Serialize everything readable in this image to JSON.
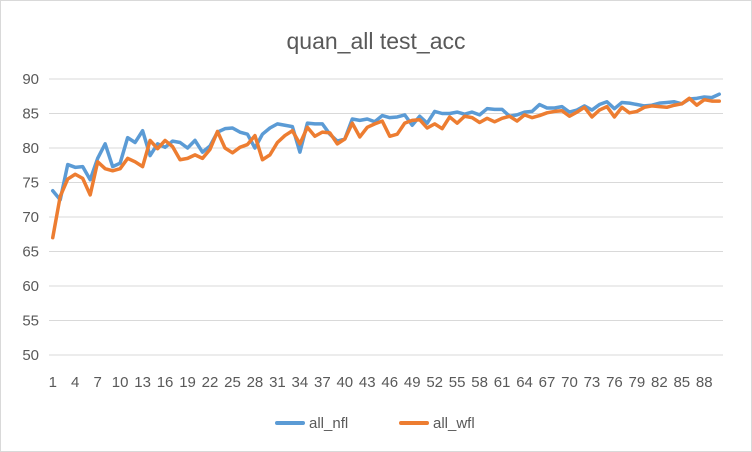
{
  "chart_data": {
    "type": "line",
    "title": "quan_all test_acc",
    "xlabel": "",
    "ylabel": "",
    "ylim": [
      50,
      90
    ],
    "yticks": [
      50,
      55,
      60,
      65,
      70,
      75,
      80,
      85,
      90
    ],
    "xtick_labels": [
      "1",
      "4",
      "7",
      "10",
      "13",
      "16",
      "19",
      "22",
      "25",
      "28",
      "31",
      "34",
      "37",
      "40",
      "43",
      "46",
      "49",
      "52",
      "55",
      "58",
      "61",
      "64",
      "67",
      "70",
      "73",
      "76",
      "79",
      "82",
      "85",
      "88"
    ],
    "xtick_every": 3,
    "grid": "horizontal",
    "legend": "bottom",
    "x": [
      1,
      2,
      3,
      4,
      5,
      6,
      7,
      8,
      9,
      10,
      11,
      12,
      13,
      14,
      15,
      16,
      17,
      18,
      19,
      20,
      21,
      22,
      23,
      24,
      25,
      26,
      27,
      28,
      29,
      30,
      31,
      32,
      33,
      34,
      35,
      36,
      37,
      38,
      39,
      40,
      41,
      42,
      43,
      44,
      45,
      46,
      47,
      48,
      49,
      50,
      51,
      52,
      53,
      54,
      55,
      56,
      57,
      58,
      59,
      60,
      61,
      62,
      63,
      64,
      65,
      66,
      67,
      68,
      69,
      70,
      71,
      72,
      73,
      74,
      75,
      76,
      77,
      78,
      79,
      80,
      81,
      82,
      83,
      84,
      85,
      86,
      87,
      88,
      89,
      90
    ],
    "series": [
      {
        "name": "all_nfl",
        "color": "#5b9bd5",
        "values": [
          73.8,
          72.5,
          77.6,
          77.2,
          77.3,
          75.4,
          78.5,
          80.6,
          77.3,
          77.8,
          81.5,
          80.8,
          82.5,
          78.9,
          80.6,
          80.1,
          81.0,
          80.8,
          80.0,
          81.1,
          79.4,
          80.3,
          82.3,
          82.8,
          82.9,
          82.3,
          82.0,
          80.0,
          82.0,
          82.9,
          83.5,
          83.3,
          83.1,
          79.4,
          83.6,
          83.5,
          83.5,
          82.0,
          81.0,
          81.3,
          84.2,
          84.0,
          84.2,
          83.8,
          84.7,
          84.4,
          84.5,
          84.8,
          83.3,
          84.6,
          83.6,
          85.3,
          85.0,
          85.0,
          85.2,
          84.9,
          85.2,
          84.8,
          85.7,
          85.6,
          85.6,
          84.6,
          84.8,
          85.2,
          85.3,
          86.3,
          85.8,
          85.8,
          86.0,
          85.2,
          85.5,
          86.1,
          85.5,
          86.3,
          86.7,
          85.7,
          86.6,
          86.5,
          86.3,
          86.1,
          86.2,
          86.5,
          86.6,
          86.7,
          86.4,
          87.1,
          87.2,
          87.4,
          87.3,
          87.8
        ]
      },
      {
        "name": "all_wfl",
        "color": "#ed7d31",
        "values": [
          67.0,
          73.0,
          75.5,
          76.2,
          75.6,
          73.2,
          78.0,
          77.0,
          76.7,
          77.0,
          78.5,
          78.0,
          77.3,
          81.1,
          79.9,
          81.1,
          80.2,
          78.3,
          78.5,
          79.0,
          78.5,
          79.8,
          82.4,
          80.0,
          79.3,
          80.1,
          80.5,
          81.8,
          78.3,
          79.0,
          80.8,
          81.8,
          82.5,
          80.6,
          83.0,
          81.7,
          82.3,
          82.2,
          80.6,
          81.3,
          83.6,
          81.6,
          83.0,
          83.5,
          83.9,
          81.7,
          82.0,
          83.6,
          84.0,
          84.1,
          82.9,
          83.5,
          82.8,
          84.5,
          83.6,
          84.6,
          84.4,
          83.7,
          84.3,
          83.8,
          84.3,
          84.6,
          83.9,
          84.8,
          84.4,
          84.7,
          85.1,
          85.3,
          85.4,
          84.6,
          85.2,
          85.9,
          84.5,
          85.5,
          86.0,
          84.5,
          85.9,
          85.1,
          85.3,
          85.9,
          86.1,
          86.0,
          85.9,
          86.2,
          86.4,
          87.2,
          86.2,
          87.0,
          86.8,
          86.8
        ]
      }
    ]
  }
}
